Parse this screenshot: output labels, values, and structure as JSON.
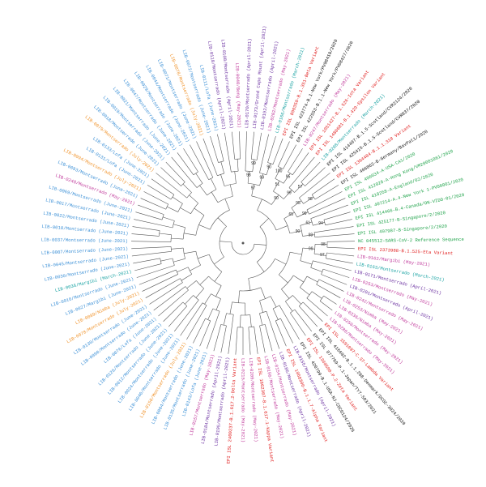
{
  "leaves": [
    {
      "label": "LIB-0170/Montserrado (April-2021)",
      "color": "#6a2fa0"
    },
    {
      "label": "LIB-0173/Grand Cape Mount (April-2021)",
      "color": "#6a2fa0"
    },
    {
      "label": "LIB-0192/Montserrado (April-2021)",
      "color": "#6a2fa0"
    },
    {
      "label": "LIB-0202/Montserrado (May-2021)",
      "color": "#c0399b"
    },
    {
      "label": "LIB-0166/Montserrado (March-2021)",
      "color": "#1aa3a3"
    },
    {
      "label": "EPI ISL 890350-B.1.351-Beta Variant",
      "color": "#e01b1b"
    },
    {
      "label": "EPI ISL 423774-B.1-New York/PV08410/2020",
      "color": "#111111"
    },
    {
      "label": "EPI ISL 422553-B.1.1-New York/PV08427/2020",
      "color": "#111111"
    },
    {
      "label": "LIB-0247/Montserrado (May-2021)",
      "color": "#c0399b"
    },
    {
      "label": "EPI ISL 1051427-B.1.526-Iota Variant",
      "color": "#e01b1b"
    },
    {
      "label": "EPI ISL 1480681-B.1.429-Epsilon Variant",
      "color": "#e01b1b"
    },
    {
      "label": "LIB-0208/Montserrado (March-2021)",
      "color": "#1aa3a3"
    },
    {
      "label": "EPI ISL 414487-B.1.5-Scotland/CVR2124/2020",
      "color": "#111111"
    },
    {
      "label": "EPI ISL 425415-B.1.5-Scotland/CVR837/2020",
      "color": "#111111"
    },
    {
      "label": "EPI ISL 1364484-B.1.1.318 Variant",
      "color": "#e01b1b"
    },
    {
      "label": "EPI ISL 406862-B-Germany/BavPat1/2020",
      "color": "#111111"
    },
    {
      "label": "EPI ISL 406034-A-USA-CA1/2020",
      "color": "#1fa34a"
    },
    {
      "label": "EPI ISL 412028-A-Hong Kong/VM20001061/2020",
      "color": "#1fa34a"
    },
    {
      "label": "EPI ISL 418258-A-England/02/2020",
      "color": "#1fa34a"
    },
    {
      "label": "EPI ISL 407214-A.4-New York 1-PV08001/2020",
      "color": "#1fa34a"
    },
    {
      "label": "EPI ISL 414466-B.4-Canada/ON-VIDO-01/2020",
      "color": "#1fa34a"
    },
    {
      "label": "EPI ISL 425177-B-Singapore/2/2020",
      "color": "#1fa34a"
    },
    {
      "label": "EPI ISL 407987-B-Singapore/2/2020",
      "color": "#1fa34a"
    },
    {
      "label": "NC 045512-SARS-CoV-2 Reference Sequence",
      "color": "#1fa34a"
    },
    {
      "label": "EPI ISL 2373988-B.1.525-Eta Variant",
      "color": "#e01b1b"
    },
    {
      "label": "LIB-0162/Margibi (May-2021)",
      "color": "#c0399b"
    },
    {
      "label": "LIB-0163/Montserrado (March-2021)",
      "color": "#1aa3a3"
    },
    {
      "label": "LIB-0171/Montserrado (April-2021)",
      "color": "#6a2fa0"
    },
    {
      "label": "LIB-0253/Montserrado (May-2021)",
      "color": "#c0399b"
    },
    {
      "label": "LIB-0201/Montserrado (April-2021)",
      "color": "#6a2fa0"
    },
    {
      "label": "LIB-0242/Montserrado (May-2021)",
      "color": "#c0399b"
    },
    {
      "label": "LIB-0253/Nimba (May-2021)",
      "color": "#c0399b"
    },
    {
      "label": "LIB-0236/Nimba (May-2021)",
      "color": "#c0399b"
    },
    {
      "label": "LIB-0250/Montserrado (May-2021)",
      "color": "#c0399b"
    },
    {
      "label": "LIB-0288/Montserrado (May-2021)",
      "color": "#c0399b"
    },
    {
      "label": "EPI ISL 1591097-C.37-Lambda Variant",
      "color": "#e01b1b"
    },
    {
      "label": "EPI ISL 416602-B.1.1.298-Denmark/DCGC-3024/2020",
      "color": "#111111"
    },
    {
      "label": "EPI ISL 877769-P.1-Japan/TY7-503/2021",
      "color": "#111111"
    },
    {
      "label": "EPI ISL 1360500-P.2-Zeta Variant",
      "color": "#e01b1b"
    },
    {
      "label": "EPI ISL 420799-B.1-USA-NJ-CDC0124/2020",
      "color": "#111111"
    },
    {
      "label": "LIB-0155/Montserrado (April-2021)",
      "color": "#6a2fa0"
    },
    {
      "label": "EPI ISL 1058300-B.1.1.7-Alpha Variant",
      "color": "#e01b1b"
    },
    {
      "label": "LIB-0186/Montserrado (April-2021)",
      "color": "#6a2fa0"
    },
    {
      "label": "LIB-0154/Montserrado (May-2021)",
      "color": "#c0399b"
    },
    {
      "label": "LIB-0156/Montserrado (May-2021)",
      "color": "#c0399b"
    },
    {
      "label": "EPI ISL 1662307-B.1.617.1-Kappa Variant",
      "color": "#e01b1b"
    },
    {
      "label": "LIB-0209/Montserrado (May-2021)",
      "color": "#c0399b"
    },
    {
      "label": "LIB-0215/Montserrado (May-2021)",
      "color": "#c0399b"
    },
    {
      "label": "EPI ISL 2400237-B.1.617.2-Delta Variant",
      "color": "#e01b1b"
    },
    {
      "label": "LIB-0195/Montserrado (April-2021)",
      "color": "#6a2fa0"
    },
    {
      "label": "LIB-0184/Montserrado (April-2021)",
      "color": "#6a2fa0"
    },
    {
      "label": "LIB-0157/Montserrado (May-2021)",
      "color": "#c0399b"
    },
    {
      "label": "LIB-0143/Lofa (June-2021)",
      "color": "#3a8fd6"
    },
    {
      "label": "LIB-0135/Montserrado (June-2021)",
      "color": "#3a8fd6"
    },
    {
      "label": "LIB-0004/Montserrado (June-2021)",
      "color": "#3a8fd6"
    },
    {
      "label": "LIB-0150/Montserrado (July-2021)",
      "color": "#f0932b"
    },
    {
      "label": "LIB-0040/Montserrado (June-2021)",
      "color": "#3a8fd6"
    },
    {
      "label": "LIB-0024/Montserrado (June-2021)",
      "color": "#3a8fd6"
    },
    {
      "label": "LIB-0012/Montserrado (June-2021)",
      "color": "#3a8fd6"
    },
    {
      "label": "LIB-0126/Montserrado (June-2021)",
      "color": "#3a8fd6"
    },
    {
      "label": "LIB-0076/Lofa (June-2021)",
      "color": "#3a8fd6"
    },
    {
      "label": "LIB-0090/Montserrado (June-2021)",
      "color": "#3a8fd6"
    },
    {
      "label": "LIB-0130/Montserrado (June-2021)",
      "color": "#3a8fd6"
    },
    {
      "label": "LIB-0078/Montserrado (July-2021)",
      "color": "#f0932b"
    },
    {
      "label": "LIB-0089/Nimba (July-2021)",
      "color": "#f0932b"
    },
    {
      "label": "LIB-0027/Margibi (June-2021)",
      "color": "#3a8fd6"
    },
    {
      "label": "LIB-0016/Montserrado (June-2021)",
      "color": "#3a8fd6"
    },
    {
      "label": "LIB-0036/Margibi (March-2021)",
      "color": "#1aa3a3"
    },
    {
      "label": "LIB-0030/Montserrado (June-2021)",
      "color": "#3a8fd6"
    },
    {
      "label": "LIB-0045/Montserrado (June-2021)",
      "color": "#3a8fd6"
    },
    {
      "label": "LIB-0007/Montserrado (June-2021)",
      "color": "#3a8fd6"
    },
    {
      "label": "LIB-0037/Montserrado (June-2021)",
      "color": "#3a8fd6"
    },
    {
      "label": "LIB-0010/Montserrado (June-2021)",
      "color": "#3a8fd6"
    },
    {
      "label": "LIB-0022/Montserrado (June-2021)",
      "color": "#3a8fd6"
    },
    {
      "label": "LIB-0017/Montserrado (June-2021)",
      "color": "#3a8fd6"
    },
    {
      "label": "LIB-0069/Montserrado (June-2021)",
      "color": "#3a8fd6"
    },
    {
      "label": "LIB-0248/Montserrado (May-2021)",
      "color": "#c0399b"
    },
    {
      "label": "LIB-0093/Montserrado (June-2021)",
      "color": "#3a8fd6"
    },
    {
      "label": "LIB-0094/Montserrado (July-2021)",
      "color": "#f0932b"
    },
    {
      "label": "LIB-0131/Lofa (June-2021)",
      "color": "#3a8fd6"
    },
    {
      "label": "LIB-0133/Lofa (June-2021)",
      "color": "#3a8fd6"
    },
    {
      "label": "LIB-0079/Montserrado (July-2021)",
      "color": "#f0932b"
    },
    {
      "label": "LIB-0018/Montserrado (June-2021)",
      "color": "#3a8fd6"
    },
    {
      "label": "LIB-0019/Montserrado (June-2021)",
      "color": "#3a8fd6"
    },
    {
      "label": "LIB-0021/Montserrado (June-2021)",
      "color": "#3a8fd6"
    },
    {
      "label": "LIB-0047/Montserrado (June-2021)",
      "color": "#3a8fd6"
    },
    {
      "label": "LIB-0029/Montserrado (June-2021)",
      "color": "#3a8fd6"
    },
    {
      "label": "LIB-0044/Montserrado (June-2021)",
      "color": "#3a8fd6"
    },
    {
      "label": "LIB-0071/Montserrado (June-2021)",
      "color": "#3a8fd6"
    },
    {
      "label": "LIB-0078/Montserrado (July-2021)",
      "color": "#f0932b"
    },
    {
      "label": "LIB-0072/Montserrado (June-2021)",
      "color": "#3a8fd6"
    },
    {
      "label": "LIB-0111/Lofa (June-2021)",
      "color": "#3a8fd6"
    },
    {
      "label": "LIB-0118/Montserrado (April-2021)",
      "color": "#6a2fa0"
    },
    {
      "label": "LIB-0108/Montserrado (April-2021)",
      "color": "#6a2fa0"
    },
    {
      "label": "LIB-0040/Bong (May-2021)",
      "color": "#c0399b"
    }
  ],
  "support": [
    99,
    98,
    90,
    99,
    97,
    100,
    95,
    51,
    57,
    99,
    90,
    98,
    95,
    99,
    65,
    94,
    61,
    99,
    90,
    98,
    97,
    99
  ]
}
